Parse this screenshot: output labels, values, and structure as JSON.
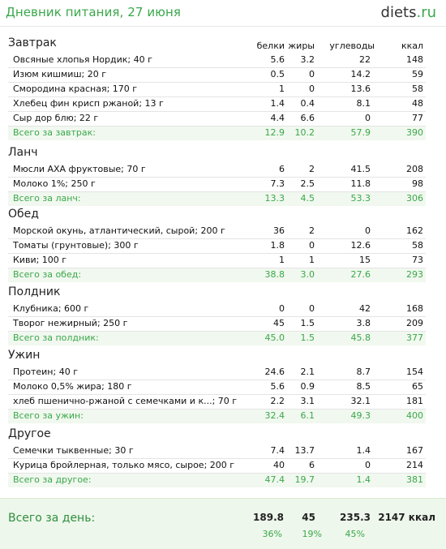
{
  "header": {
    "title": "Дневник питания, 27 июня",
    "logo_main": "diets",
    "logo_tld": ".ru"
  },
  "columns": {
    "protein": "белки",
    "fat": "жиры",
    "carbs": "углеводы",
    "kcal": "ккал"
  },
  "sections": [
    {
      "title": "Завтрак",
      "items": [
        {
          "name": "Овсяные хлопья Нордик; 40 г",
          "b": "5.6",
          "j": "3.2",
          "u": "22",
          "k": "148"
        },
        {
          "name": "Изюм кишмиш; 20 г",
          "b": "0.5",
          "j": "0",
          "u": "14.2",
          "k": "59"
        },
        {
          "name": "Смородина красная; 170 г",
          "b": "1",
          "j": "0",
          "u": "13.6",
          "k": "58"
        },
        {
          "name": "Хлебец фин крисп ржаной; 13 г",
          "b": "1.4",
          "j": "0.4",
          "u": "8.1",
          "k": "48"
        },
        {
          "name": "Сыр дор блю; 22 г",
          "b": "4.4",
          "j": "6.6",
          "u": "0",
          "k": "77"
        }
      ],
      "total": {
        "name": "Всего за завтрак:",
        "b": "12.9",
        "j": "10.2",
        "u": "57.9",
        "k": "390"
      }
    },
    {
      "title": "Ланч",
      "items": [
        {
          "name": "Мюсли АХА фруктовые; 70 г",
          "b": "6",
          "j": "2",
          "u": "41.5",
          "k": "208"
        },
        {
          "name": "Молоко 1%; 250 г",
          "b": "7.3",
          "j": "2.5",
          "u": "11.8",
          "k": "98"
        }
      ],
      "total": {
        "name": "Всего за ланч:",
        "b": "13.3",
        "j": "4.5",
        "u": "53.3",
        "k": "306"
      }
    },
    {
      "title": "Обед",
      "items": [
        {
          "name": "Морской окунь, атлантический, сырой; 200 г",
          "b": "36",
          "j": "2",
          "u": "0",
          "k": "162"
        },
        {
          "name": "Томаты (грунтовые); 300 г",
          "b": "1.8",
          "j": "0",
          "u": "12.6",
          "k": "58"
        },
        {
          "name": "Киви; 100 г",
          "b": "1",
          "j": "1",
          "u": "15",
          "k": "73"
        }
      ],
      "total": {
        "name": "Всего за обед:",
        "b": "38.8",
        "j": "3.0",
        "u": "27.6",
        "k": "293"
      }
    },
    {
      "title": "Полдник",
      "items": [
        {
          "name": "Клубника; 600 г",
          "b": "0",
          "j": "0",
          "u": "42",
          "k": "168"
        },
        {
          "name": "Творог нежирный; 250 г",
          "b": "45",
          "j": "1.5",
          "u": "3.8",
          "k": "209"
        }
      ],
      "total": {
        "name": "Всего за полдник:",
        "b": "45.0",
        "j": "1.5",
        "u": "45.8",
        "k": "377"
      }
    },
    {
      "title": "Ужин",
      "items": [
        {
          "name": "Протеин; 40 г",
          "b": "24.6",
          "j": "2.1",
          "u": "8.7",
          "k": "154"
        },
        {
          "name": "Молоко 0,5% жира; 180 г",
          "b": "5.6",
          "j": "0.9",
          "u": "8.5",
          "k": "65"
        },
        {
          "name": "хлеб пшенично-ржаной с семечками и к...; 70 г",
          "b": "2.2",
          "j": "3.1",
          "u": "32.1",
          "k": "181"
        }
      ],
      "total": {
        "name": "Всего за ужин:",
        "b": "32.4",
        "j": "6.1",
        "u": "49.3",
        "k": "400"
      }
    },
    {
      "title": "Другое",
      "items": [
        {
          "name": "Семечки тыквенные; 30 г",
          "b": "7.4",
          "j": "13.7",
          "u": "1.4",
          "k": "167"
        },
        {
          "name": "Курица бройлерная, только мясо, сырое; 200 г",
          "b": "40",
          "j": "6",
          "u": "0",
          "k": "214"
        }
      ],
      "total": {
        "name": "Всего за другое:",
        "b": "47.4",
        "j": "19.7",
        "u": "1.4",
        "k": "381"
      }
    }
  ],
  "day": {
    "label": "Всего за день:",
    "b": "189.8",
    "j": "45",
    "u": "235.3",
    "k": "2147 ккал",
    "b_pct": "36%",
    "j_pct": "19%",
    "u_pct": "45%"
  }
}
